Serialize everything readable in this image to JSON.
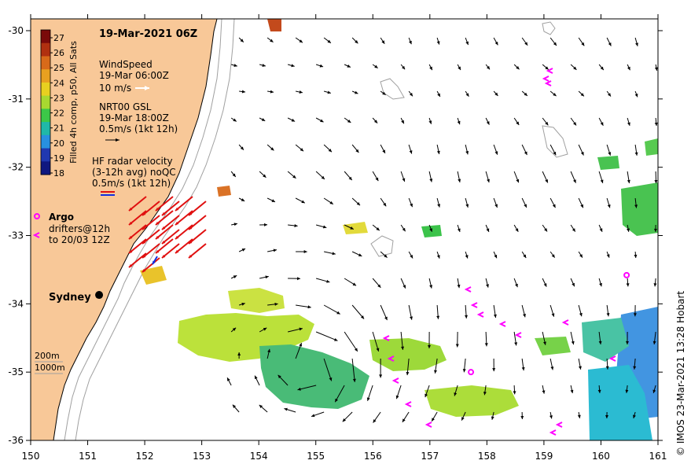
{
  "title": "19-Mar-2021 06Z",
  "credit": "© IMOS 23-Mar-2021 13:28 Hobart",
  "colorbar": {
    "label": "Filled 4h comp, p50, All Sats",
    "ticks": [
      "27",
      "26",
      "25",
      "24",
      "23",
      "22",
      "21",
      "20",
      "19",
      "18"
    ],
    "colors": [
      "#7a0a0a",
      "#b03010",
      "#d86a1a",
      "#e8a020",
      "#e8d020",
      "#a8d830",
      "#3cc848",
      "#20b8a8",
      "#2890e0",
      "#2038b0",
      "#101880"
    ]
  },
  "legend": {
    "wind_title": "WindSpeed",
    "wind_time": "19-Mar 06:00Z",
    "wind_scale": "10 m/s",
    "gsl_title": "NRT00 GSL",
    "gsl_time": "19-Mar 18:00Z",
    "gsl_scale": "0.5m/s (1kt 12h)",
    "hf_title": "HF radar velocity",
    "hf_sub": "(3-12h avg) noQC",
    "hf_scale": "0.5m/s (1kt 12h)",
    "argo_label": "Argo",
    "drifters_label_1": "drifters@12h",
    "drifters_label_2": "to 20/03 12Z",
    "depth_200": "200m",
    "depth_1000": "1000m"
  },
  "city": {
    "name": "Sydney",
    "lon": 151.2,
    "lat": -33.87
  },
  "axes": {
    "x_ticks": [
      "150",
      "151",
      "152",
      "153",
      "154",
      "155",
      "156",
      "157",
      "158",
      "159",
      "160",
      "161"
    ],
    "y_ticks": [
      "-30",
      "-31",
      "-32",
      "-33",
      "-34",
      "-35",
      "-36"
    ]
  },
  "argo_floats": [
    {
      "lon": 160.45,
      "lat": -33.58
    },
    {
      "lon": 157.72,
      "lat": -35.0
    }
  ],
  "colors": {
    "land": "#f8c898",
    "coast": "#000000",
    "isobath": "#a0a0a0",
    "gsl_arrow": "#000000",
    "hf_arrow": "#e01010",
    "drifter": "#ff00ff"
  }
}
